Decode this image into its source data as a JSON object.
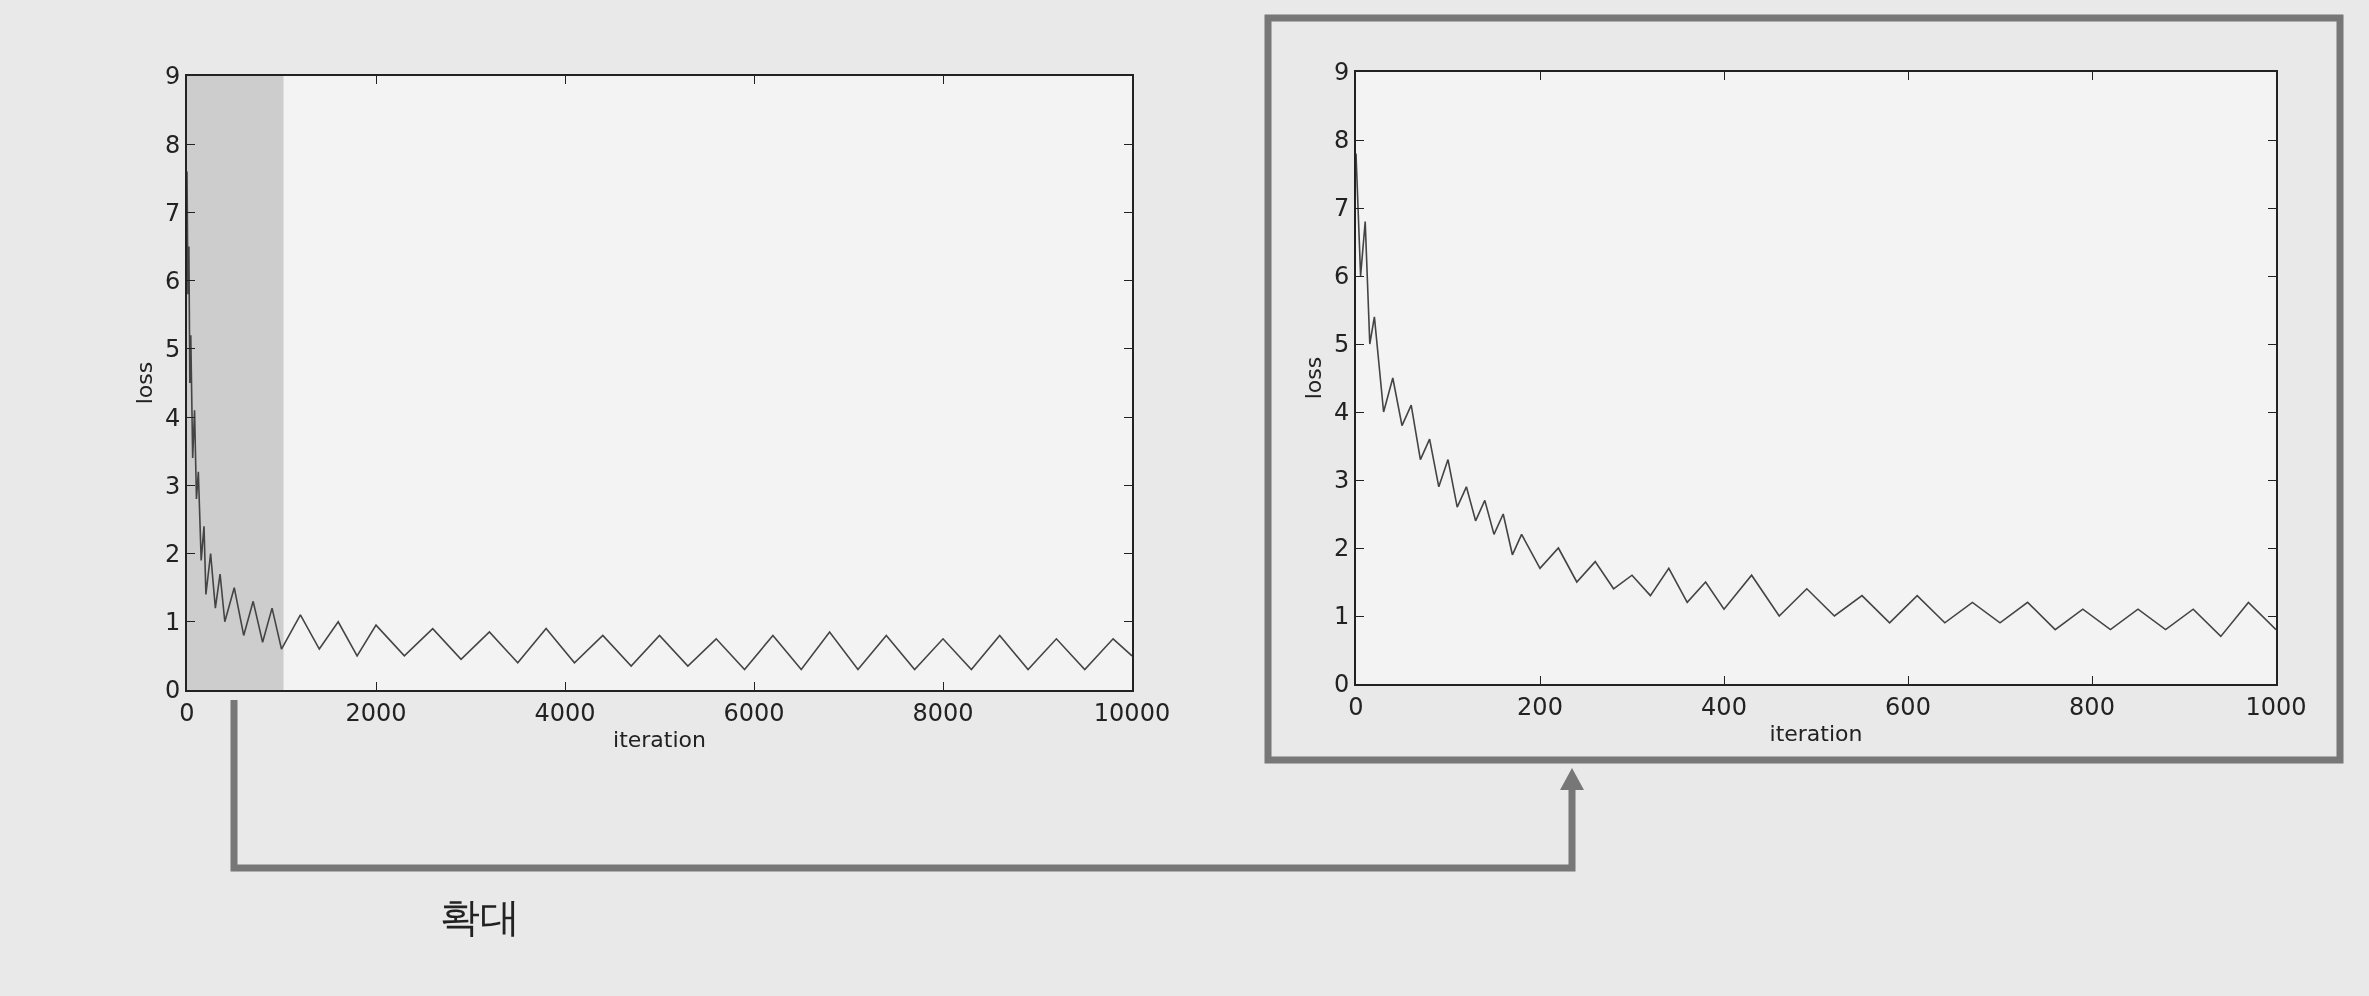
{
  "chart_data": [
    {
      "type": "line",
      "xlabel": "iteration",
      "ylabel": "loss",
      "xlim": [
        0,
        10000
      ],
      "ylim": [
        0,
        9
      ],
      "xticks": [
        0,
        2000,
        4000,
        6000,
        8000,
        10000
      ],
      "yticks": [
        0,
        1,
        2,
        3,
        4,
        5,
        6,
        7,
        8,
        9
      ],
      "grid": false,
      "legend": false,
      "annotations": [
        "확대"
      ],
      "bands": [
        {
          "axis": "x",
          "from": 0,
          "to": 1000,
          "color": "#777777"
        }
      ],
      "series": [
        {
          "color": "#444444",
          "x": [
            0,
            10,
            20,
            30,
            40,
            60,
            80,
            100,
            120,
            150,
            180,
            200,
            250,
            300,
            350,
            400,
            500,
            600,
            700,
            800,
            900,
            1000,
            1200,
            1400,
            1600,
            1800,
            2000,
            2300,
            2600,
            2900,
            3200,
            3500,
            3800,
            4100,
            4400,
            4700,
            5000,
            5300,
            5600,
            5900,
            6200,
            6500,
            6800,
            7100,
            7400,
            7700,
            8000,
            8300,
            8600,
            8900,
            9200,
            9500,
            9800,
            10000
          ],
          "values": [
            7.6,
            5.8,
            6.5,
            4.5,
            5.2,
            3.4,
            4.1,
            2.8,
            3.2,
            1.9,
            2.4,
            1.4,
            2.0,
            1.2,
            1.7,
            1.0,
            1.5,
            0.8,
            1.3,
            0.7,
            1.2,
            0.6,
            1.1,
            0.6,
            1.0,
            0.5,
            0.95,
            0.5,
            0.9,
            0.45,
            0.85,
            0.4,
            0.9,
            0.4,
            0.8,
            0.35,
            0.8,
            0.35,
            0.75,
            0.3,
            0.8,
            0.3,
            0.85,
            0.3,
            0.8,
            0.3,
            0.75,
            0.3,
            0.8,
            0.3,
            0.75,
            0.3,
            0.75,
            0.5
          ]
        }
      ]
    },
    {
      "type": "line",
      "xlabel": "iteration",
      "ylabel": "loss",
      "xlim": [
        0,
        1000
      ],
      "ylim": [
        0,
        9
      ],
      "xticks": [
        0,
        200,
        400,
        600,
        800,
        1000
      ],
      "yticks": [
        0,
        1,
        2,
        3,
        4,
        5,
        6,
        7,
        8,
        9
      ],
      "grid": false,
      "legend": false,
      "series": [
        {
          "color": "#444444",
          "x": [
            0,
            5,
            10,
            15,
            20,
            30,
            40,
            50,
            60,
            70,
            80,
            90,
            100,
            110,
            120,
            130,
            140,
            150,
            160,
            170,
            180,
            200,
            220,
            240,
            260,
            280,
            300,
            320,
            340,
            360,
            380,
            400,
            430,
            460,
            490,
            520,
            550,
            580,
            610,
            640,
            670,
            700,
            730,
            760,
            790,
            820,
            850,
            880,
            910,
            940,
            970,
            1000
          ],
          "values": [
            7.8,
            6.0,
            6.8,
            5.0,
            5.4,
            4.0,
            4.5,
            3.8,
            4.1,
            3.3,
            3.6,
            2.9,
            3.3,
            2.6,
            2.9,
            2.4,
            2.7,
            2.2,
            2.5,
            1.9,
            2.2,
            1.7,
            2.0,
            1.5,
            1.8,
            1.4,
            1.6,
            1.3,
            1.7,
            1.2,
            1.5,
            1.1,
            1.6,
            1.0,
            1.4,
            1.0,
            1.3,
            0.9,
            1.3,
            0.9,
            1.2,
            0.9,
            1.2,
            0.8,
            1.1,
            0.8,
            1.1,
            0.8,
            1.1,
            0.7,
            1.2,
            0.8
          ]
        }
      ]
    }
  ]
}
